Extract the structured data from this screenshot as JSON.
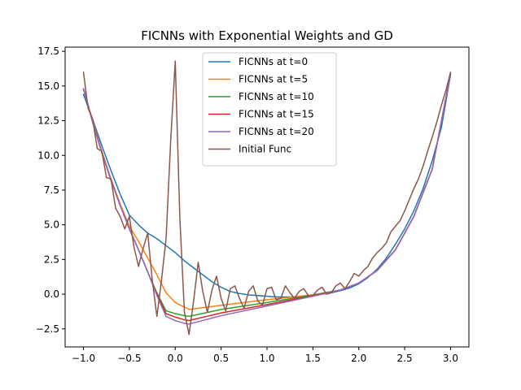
{
  "chart_data": {
    "type": "line",
    "title": "FICNNs with Exponential Weights and GD",
    "xlabel": "",
    "ylabel": "",
    "xlim": [
      -1.2,
      3.2
    ],
    "ylim": [
      -3.8,
      17.8
    ],
    "xticks": [
      -1.0,
      -0.5,
      0.0,
      0.5,
      1.0,
      1.5,
      2.0,
      2.5,
      3.0
    ],
    "xtick_labels": [
      "−1.0",
      "−0.5",
      "0.0",
      "0.5",
      "1.0",
      "1.5",
      "2.0",
      "2.5",
      "3.0"
    ],
    "yticks": [
      -2.5,
      0.0,
      2.5,
      5.0,
      7.5,
      10.0,
      12.5,
      15.0,
      17.5
    ],
    "ytick_labels": [
      "−2.5",
      "0.0",
      "2.5",
      "5.0",
      "7.5",
      "10.0",
      "12.5",
      "15.0",
      "17.5"
    ],
    "grid": false,
    "legend_position": "upper-center",
    "series": [
      {
        "name": "FICNNs at t=0",
        "color": "#1f77b4",
        "x": [
          -1.0,
          -0.9,
          -0.8,
          -0.7,
          -0.6,
          -0.5,
          -0.4,
          -0.3,
          -0.2,
          -0.1,
          0.0,
          0.1,
          0.2,
          0.3,
          0.4,
          0.5,
          0.6,
          0.7,
          0.8,
          0.9,
          1.0,
          1.1,
          1.2,
          1.3,
          1.4,
          1.5,
          1.6,
          1.7,
          1.8,
          1.9,
          2.0,
          2.1,
          2.2,
          2.3,
          2.4,
          2.5,
          2.6,
          2.7,
          2.8,
          2.9,
          3.0
        ],
        "y": [
          14.4,
          12.6,
          10.7,
          8.9,
          7.2,
          5.7,
          5.0,
          4.4,
          4.0,
          3.5,
          3.0,
          2.4,
          1.9,
          1.4,
          0.9,
          0.5,
          0.2,
          0.05,
          -0.05,
          -0.1,
          -0.15,
          -0.2,
          -0.2,
          -0.2,
          -0.15,
          -0.1,
          0.0,
          0.1,
          0.25,
          0.45,
          0.75,
          1.2,
          1.8,
          2.6,
          3.6,
          4.7,
          6.0,
          7.6,
          9.6,
          12.0,
          15.8
        ]
      },
      {
        "name": "FICNNs at t=5",
        "color": "#ff7f0e",
        "x": [
          -1.0,
          -0.9,
          -0.8,
          -0.7,
          -0.6,
          -0.5,
          -0.4,
          -0.3,
          -0.2,
          -0.1,
          0.0,
          0.15,
          0.5,
          1.0,
          1.5,
          1.8,
          2.0,
          2.2,
          2.4,
          2.6,
          2.8,
          3.0
        ],
        "y": [
          14.8,
          12.5,
          10.3,
          8.3,
          6.5,
          4.9,
          3.8,
          2.6,
          1.4,
          0.1,
          -0.6,
          -1.1,
          -0.8,
          -0.4,
          -0.05,
          0.3,
          0.8,
          1.7,
          3.2,
          5.6,
          9.0,
          15.9
        ]
      },
      {
        "name": "FICNNs at t=10",
        "color": "#2ca02c",
        "x": [
          -1.0,
          -0.9,
          -0.8,
          -0.7,
          -0.6,
          -0.5,
          -0.4,
          -0.3,
          -0.2,
          -0.1,
          0.0,
          0.1,
          0.15,
          0.5,
          1.0,
          1.5,
          1.8,
          2.0,
          2.2,
          2.4,
          2.6,
          2.8,
          3.0
        ],
        "y": [
          14.8,
          12.4,
          10.2,
          8.2,
          6.4,
          4.7,
          3.2,
          1.6,
          0.1,
          -1.2,
          -1.4,
          -1.55,
          -1.6,
          -1.1,
          -0.6,
          -0.05,
          0.3,
          0.8,
          1.7,
          3.2,
          5.6,
          9.0,
          15.9
        ]
      },
      {
        "name": "FICNNs at t=15",
        "color": "#d62728",
        "x": [
          -1.0,
          -0.9,
          -0.8,
          -0.7,
          -0.6,
          -0.5,
          -0.4,
          -0.3,
          -0.2,
          -0.1,
          0.0,
          0.1,
          0.15,
          0.5,
          1.0,
          1.5,
          1.8,
          2.0,
          2.2,
          2.4,
          2.6,
          2.8,
          3.0
        ],
        "y": [
          14.8,
          12.4,
          10.2,
          8.2,
          6.4,
          4.7,
          3.2,
          1.6,
          0.0,
          -1.4,
          -1.65,
          -1.85,
          -1.9,
          -1.35,
          -0.75,
          -0.1,
          0.3,
          0.8,
          1.7,
          3.2,
          5.6,
          9.0,
          15.9
        ]
      },
      {
        "name": "FICNNs at t=20",
        "color": "#9467bd",
        "x": [
          -1.0,
          -0.9,
          -0.8,
          -0.7,
          -0.6,
          -0.5,
          -0.4,
          -0.3,
          -0.2,
          -0.1,
          0.0,
          0.1,
          0.15,
          0.5,
          1.0,
          1.5,
          1.8,
          2.0,
          2.2,
          2.4,
          2.6,
          2.8,
          3.0
        ],
        "y": [
          14.8,
          12.4,
          10.2,
          8.2,
          6.4,
          4.7,
          3.2,
          1.6,
          -0.1,
          -1.6,
          -1.9,
          -2.1,
          -2.15,
          -1.55,
          -0.85,
          -0.15,
          0.3,
          0.8,
          1.7,
          3.2,
          5.6,
          9.0,
          15.9
        ]
      },
      {
        "name": "Initial Func",
        "color": "#8c564b",
        "x": [
          -1.0,
          -0.95,
          -0.9,
          -0.85,
          -0.8,
          -0.75,
          -0.7,
          -0.65,
          -0.6,
          -0.55,
          -0.5,
          -0.45,
          -0.4,
          -0.35,
          -0.3,
          -0.25,
          -0.2,
          -0.15,
          -0.1,
          -0.05,
          0.0,
          0.05,
          0.1,
          0.15,
          0.2,
          0.25,
          0.3,
          0.35,
          0.4,
          0.45,
          0.5,
          0.55,
          0.6,
          0.65,
          0.7,
          0.75,
          0.8,
          0.85,
          0.9,
          0.95,
          1.0,
          1.05,
          1.1,
          1.15,
          1.2,
          1.25,
          1.3,
          1.35,
          1.4,
          1.45,
          1.5,
          1.55,
          1.6,
          1.65,
          1.7,
          1.75,
          1.8,
          1.85,
          1.9,
          1.95,
          2.0,
          2.05,
          2.1,
          2.15,
          2.2,
          2.25,
          2.3,
          2.35,
          2.4,
          2.45,
          2.5,
          2.55,
          2.6,
          2.65,
          2.7,
          2.75,
          2.8,
          2.85,
          2.9,
          2.95,
          3.0
        ],
        "y": [
          16.0,
          13.4,
          12.6,
          10.5,
          10.3,
          8.4,
          8.3,
          6.2,
          5.6,
          4.7,
          5.6,
          3.4,
          2.0,
          3.3,
          4.4,
          1.0,
          -1.6,
          1.0,
          4.0,
          11.0,
          16.8,
          5.5,
          -1.3,
          -2.9,
          -0.5,
          2.3,
          0.2,
          -1.3,
          0.3,
          1.3,
          -0.3,
          -1.2,
          0.4,
          0.6,
          -0.3,
          -1.0,
          0.2,
          0.6,
          -0.5,
          -0.8,
          0.4,
          0.5,
          -0.4,
          -0.3,
          0.6,
          0.1,
          -0.3,
          0.2,
          0.4,
          -0.1,
          -0.1,
          0.3,
          0.5,
          0.0,
          0.1,
          0.6,
          0.8,
          0.4,
          0.9,
          1.5,
          1.3,
          1.7,
          2.0,
          2.6,
          3.0,
          3.3,
          3.7,
          4.5,
          4.9,
          5.3,
          6.0,
          6.8,
          7.6,
          8.3,
          9.2,
          10.3,
          11.3,
          12.4,
          13.6,
          14.7,
          16.0
        ]
      }
    ]
  }
}
